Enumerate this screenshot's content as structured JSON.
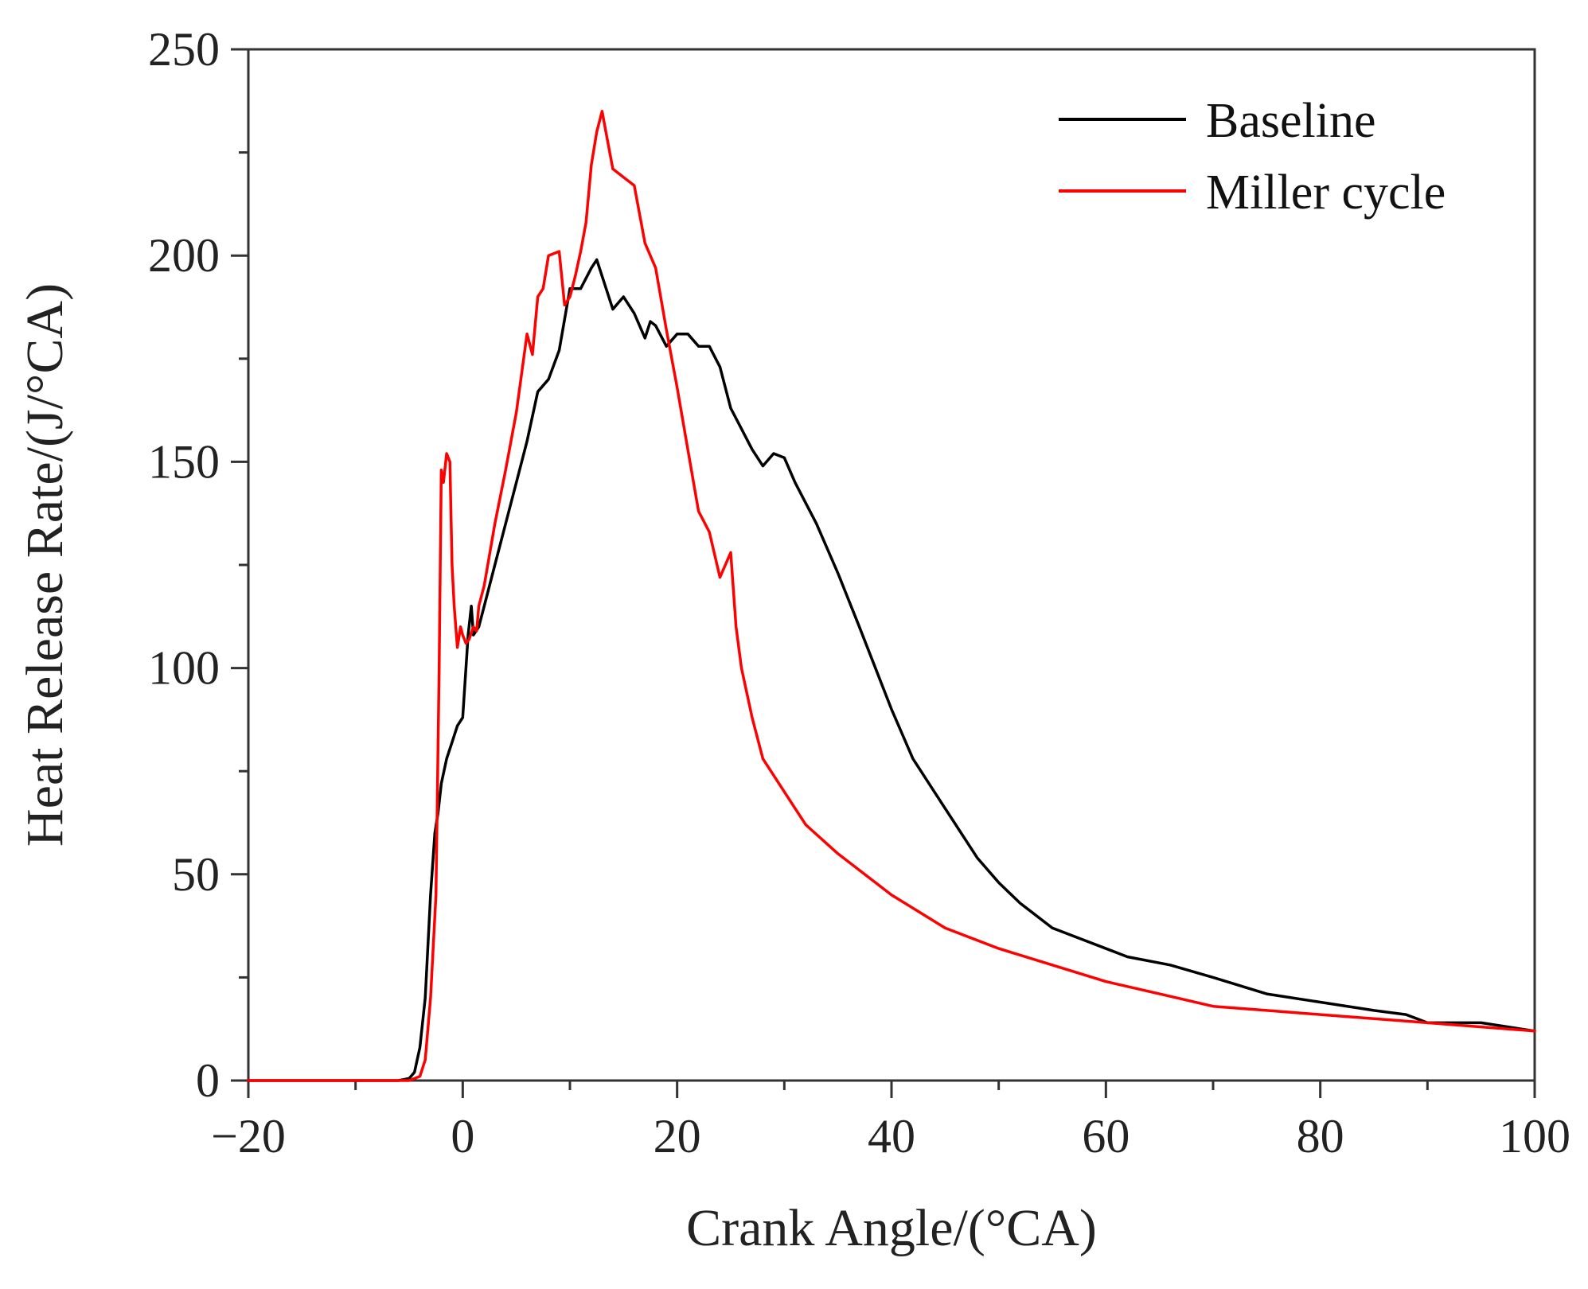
{
  "chart_data": {
    "type": "line",
    "title": "",
    "xlabel": "Crank Angle/(°CA)",
    "ylabel": "Heat Release Rate/(J/°CA)",
    "xlim": [
      -20,
      100
    ],
    "ylim": [
      0,
      250
    ],
    "x_ticks": [
      -20,
      0,
      20,
      40,
      60,
      80,
      100
    ],
    "x_tick_labels": [
      "−20",
      "0",
      "20",
      "40",
      "60",
      "80",
      "100"
    ],
    "y_ticks": [
      0,
      50,
      100,
      150,
      200,
      250
    ],
    "y_tick_labels": [
      "0",
      "50",
      "100",
      "150",
      "200",
      "250"
    ],
    "legend_position": "top-right",
    "grid": false,
    "series": [
      {
        "name": "Baseline",
        "color": "#000000",
        "x": [
          -20,
          -6,
          -5,
          -4.5,
          -4,
          -3.5,
          -3,
          -2.6,
          -2.3,
          -2,
          -1.5,
          -1,
          -0.5,
          0,
          0.5,
          0.8,
          1,
          1.5,
          2,
          3,
          4,
          5,
          6,
          7,
          8,
          9,
          10,
          11,
          12,
          12.5,
          13,
          14,
          15,
          16,
          17,
          17.5,
          18,
          19,
          20,
          21,
          22,
          23,
          24,
          25,
          26,
          27,
          28,
          29,
          30,
          31,
          33,
          35,
          37,
          40,
          42,
          45,
          48,
          50,
          52,
          55,
          58,
          62,
          66,
          70,
          75,
          80,
          85,
          88,
          90,
          95,
          100
        ],
        "y": [
          0,
          0,
          0.5,
          2,
          8,
          20,
          45,
          60,
          65,
          72,
          78,
          82,
          86,
          88,
          108,
          115,
          108,
          110,
          115,
          125,
          135,
          145,
          155,
          167,
          170,
          177,
          192,
          192,
          197,
          199,
          195,
          187,
          190,
          186,
          180,
          184,
          183,
          178,
          181,
          181,
          178,
          178,
          173,
          163,
          158,
          153,
          149,
          152,
          151,
          145,
          135,
          123,
          110,
          90,
          78,
          66,
          54,
          48,
          43,
          37,
          34,
          30,
          28,
          25,
          21,
          19,
          17,
          16,
          14,
          14,
          12
        ]
      },
      {
        "name": "Miller cycle",
        "color": "#ff0000",
        "x": [
          -20,
          -5,
          -4,
          -3.5,
          -3,
          -2.5,
          -2.2,
          -2,
          -1.8,
          -1.5,
          -1.2,
          -1,
          -0.8,
          -0.5,
          -0.2,
          0,
          0.3,
          0.6,
          1,
          1.3,
          1.5,
          2,
          3,
          4,
          5,
          6,
          6.5,
          7,
          7.5,
          8,
          9,
          9.5,
          10,
          10.5,
          11,
          11.5,
          12,
          12.5,
          13,
          13.5,
          14,
          15,
          16,
          17,
          18,
          19,
          20,
          21,
          22,
          23,
          24,
          25,
          25.5,
          26,
          27,
          28,
          30,
          32,
          35,
          40,
          45,
          50,
          55,
          60,
          65,
          70,
          75,
          80,
          85,
          90,
          95,
          100
        ],
        "y": [
          0,
          0,
          1,
          5,
          20,
          45,
          100,
          148,
          145,
          152,
          150,
          125,
          115,
          105,
          110,
          108,
          106,
          107,
          110,
          109,
          115,
          120,
          135,
          148,
          162,
          181,
          176,
          190,
          192,
          200,
          201,
          188,
          190,
          195,
          201,
          208,
          222,
          230,
          235,
          228,
          221,
          219,
          217,
          203,
          197,
          182,
          168,
          153,
          138,
          133,
          122,
          128,
          110,
          100,
          88,
          78,
          70,
          62,
          55,
          45,
          37,
          32,
          28,
          24,
          21,
          18,
          17,
          16,
          15,
          14,
          13,
          12
        ]
      }
    ]
  }
}
